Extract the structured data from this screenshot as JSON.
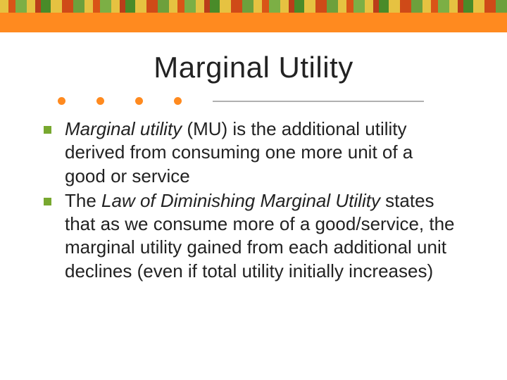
{
  "decor": {
    "top_strip_colors": [
      "#e8c54a",
      "#d3541a",
      "#7fb04a",
      "#b33c1a",
      "#4a8a2c",
      "#c94a1a",
      "#6fa040"
    ],
    "orange_bar_color": "#ff8a1f",
    "dot_color": "#ff8a1f",
    "dot_count": 4,
    "rule_color": "#b0b0b0"
  },
  "title": {
    "text": "Marginal Utility",
    "font_size": 42,
    "color": "#222222"
  },
  "body": {
    "font_size": 26,
    "line_height": 1.28,
    "color": "#222222",
    "bullet_color": "#78a82f",
    "items": [
      {
        "lead_italic": "Marginal utility ",
        "rest": " (MU) is the additional utility derived from consuming one more unit of a good or service"
      },
      {
        "pre": "The ",
        "italic": "Law of Diminishing Marginal Utility",
        "post": " states that as we consume more of a good/service, the marginal utility gained from each additional unit declines (even if total utility initially increases)"
      }
    ]
  }
}
